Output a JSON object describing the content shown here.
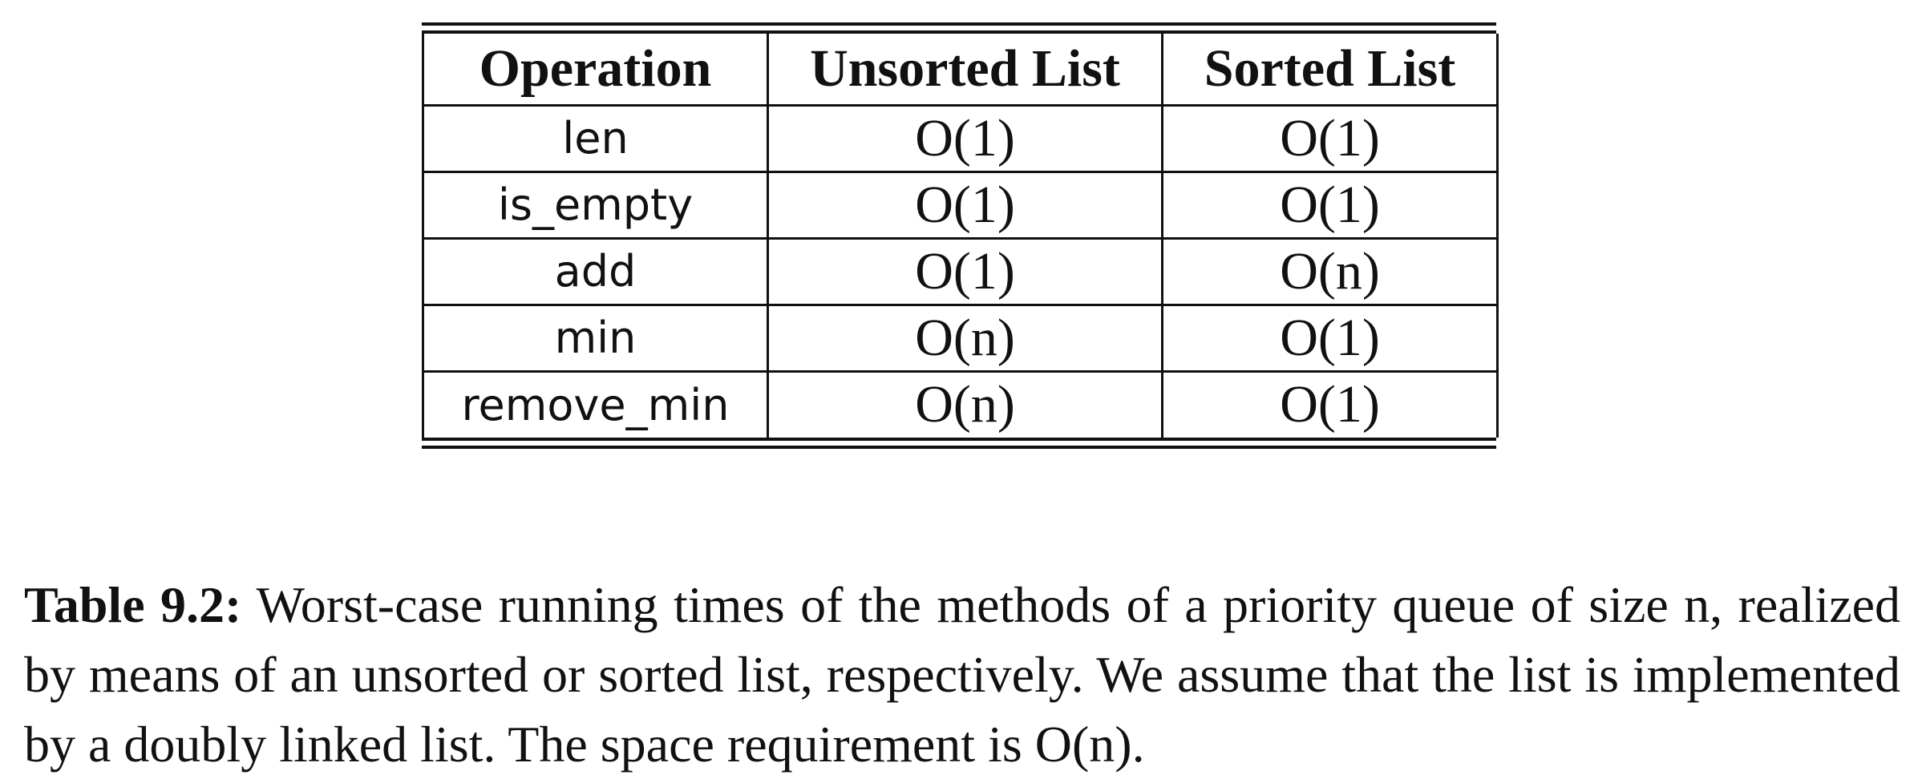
{
  "table": {
    "headers": [
      "Operation",
      "Unsorted List",
      "Sorted List"
    ],
    "rows": [
      {
        "operation": "len",
        "unsorted": "O(1)",
        "sorted": "O(1)"
      },
      {
        "operation": "is_empty",
        "unsorted": "O(1)",
        "sorted": "O(1)"
      },
      {
        "operation": "add",
        "unsorted": "O(1)",
        "sorted": "O(n)"
      },
      {
        "operation": "min",
        "unsorted": "O(n)",
        "sorted": "O(1)"
      },
      {
        "operation": "remove_min",
        "unsorted": "O(n)",
        "sorted": "O(1)"
      }
    ]
  },
  "caption": {
    "label": "Table 9.2:",
    "text": "Worst-case running times of the methods of a priority queue of size n, realized by means of an unsorted or sorted list, respectively. We assume that the list is implemented by a doubly linked list. The space requirement is O(n)."
  }
}
